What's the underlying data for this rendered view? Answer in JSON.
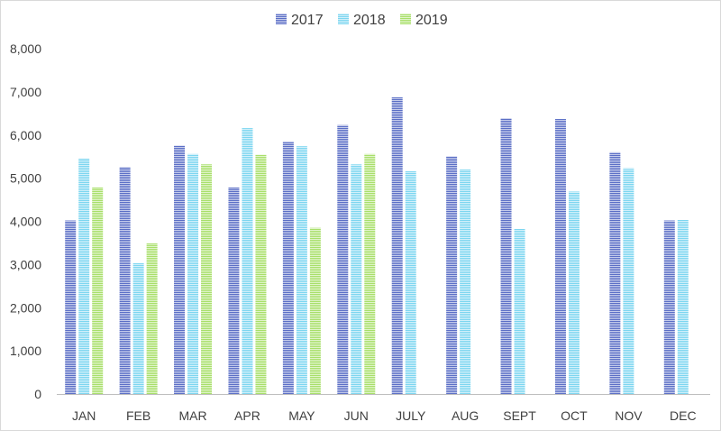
{
  "chart_data": {
    "type": "bar",
    "title": "",
    "xlabel": "",
    "ylabel": "",
    "legend_position": "top-center",
    "grid": false,
    "ylim": [
      0,
      8000
    ],
    "y_ticks": [
      "0",
      "1,000",
      "2,000",
      "3,000",
      "4,000",
      "5,000",
      "6,000",
      "7,000",
      "8,000"
    ],
    "categories": [
      "JAN",
      "FEB",
      "MAR",
      "APR",
      "MAY",
      "JUN",
      "JULY",
      "AUG",
      "SEPT",
      "OCT",
      "NOV",
      "DEC"
    ],
    "series": [
      {
        "name": "2017",
        "color": "#5b6fc6",
        "values": [
          4020,
          5260,
          5760,
          4790,
          5850,
          6230,
          6880,
          5510,
          6390,
          6370,
          5600,
          4020
        ]
      },
      {
        "name": "2018",
        "color": "#7dd6f0",
        "values": [
          5460,
          3030,
          5560,
          6160,
          5740,
          5320,
          5170,
          5200,
          3830,
          4690,
          5230,
          4040
        ]
      },
      {
        "name": "2019",
        "color": "#a8df6a",
        "values": [
          4790,
          3490,
          5320,
          5550,
          3850,
          5560,
          null,
          null,
          null,
          null,
          null,
          null
        ]
      }
    ]
  }
}
